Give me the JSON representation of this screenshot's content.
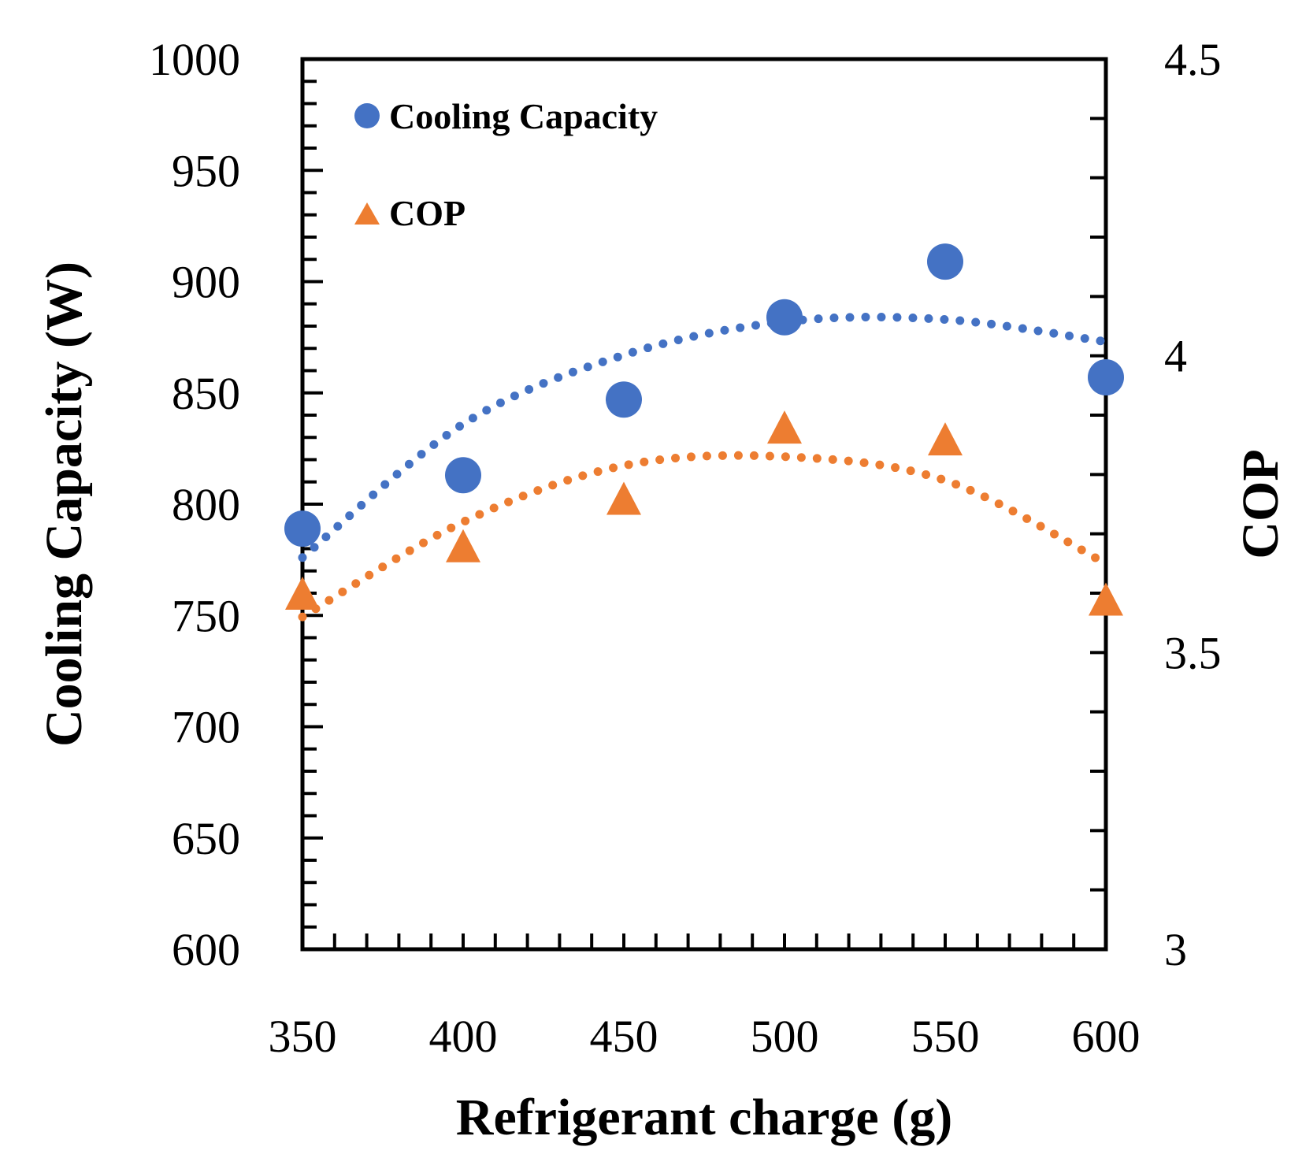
{
  "chart_data": {
    "type": "scatter",
    "x": [
      350,
      400,
      450,
      500,
      550,
      600
    ],
    "xlabel": "Refrigerant charge (g)",
    "ylabel": "Cooling Capacity (W)",
    "y2label": "COP",
    "xlim": [
      350,
      600
    ],
    "ylim": [
      600,
      1000
    ],
    "y2lim": [
      3,
      4.5
    ],
    "xticks": [
      "350",
      "400",
      "450",
      "500",
      "550",
      "600"
    ],
    "yticks": [
      "600",
      "650",
      "700",
      "750",
      "800",
      "850",
      "900",
      "950",
      "1000"
    ],
    "y2ticks": [
      "3",
      "3.5",
      "4",
      "4.5"
    ],
    "legend_position": "top-left",
    "series": [
      {
        "name": "Cooling Capacity",
        "axis": "left",
        "marker": "circle",
        "color": "#4472C4",
        "values": [
          789,
          813,
          847,
          884,
          909,
          857
        ],
        "trendline": {
          "type": "polynomial",
          "order": 2,
          "style": "dotted",
          "values": [
            776,
            836,
            867,
            882,
            883,
            873
          ]
        }
      },
      {
        "name": "COP",
        "axis": "right",
        "marker": "triangle",
        "color": "#ED7D31",
        "values": [
          3.6,
          3.68,
          3.76,
          3.88,
          3.86,
          3.59
        ],
        "trendline": {
          "type": "polynomial",
          "order": 2,
          "style": "dotted",
          "values": [
            3.56,
            3.72,
            3.815,
            3.83,
            3.79,
            3.65
          ]
        }
      }
    ]
  }
}
